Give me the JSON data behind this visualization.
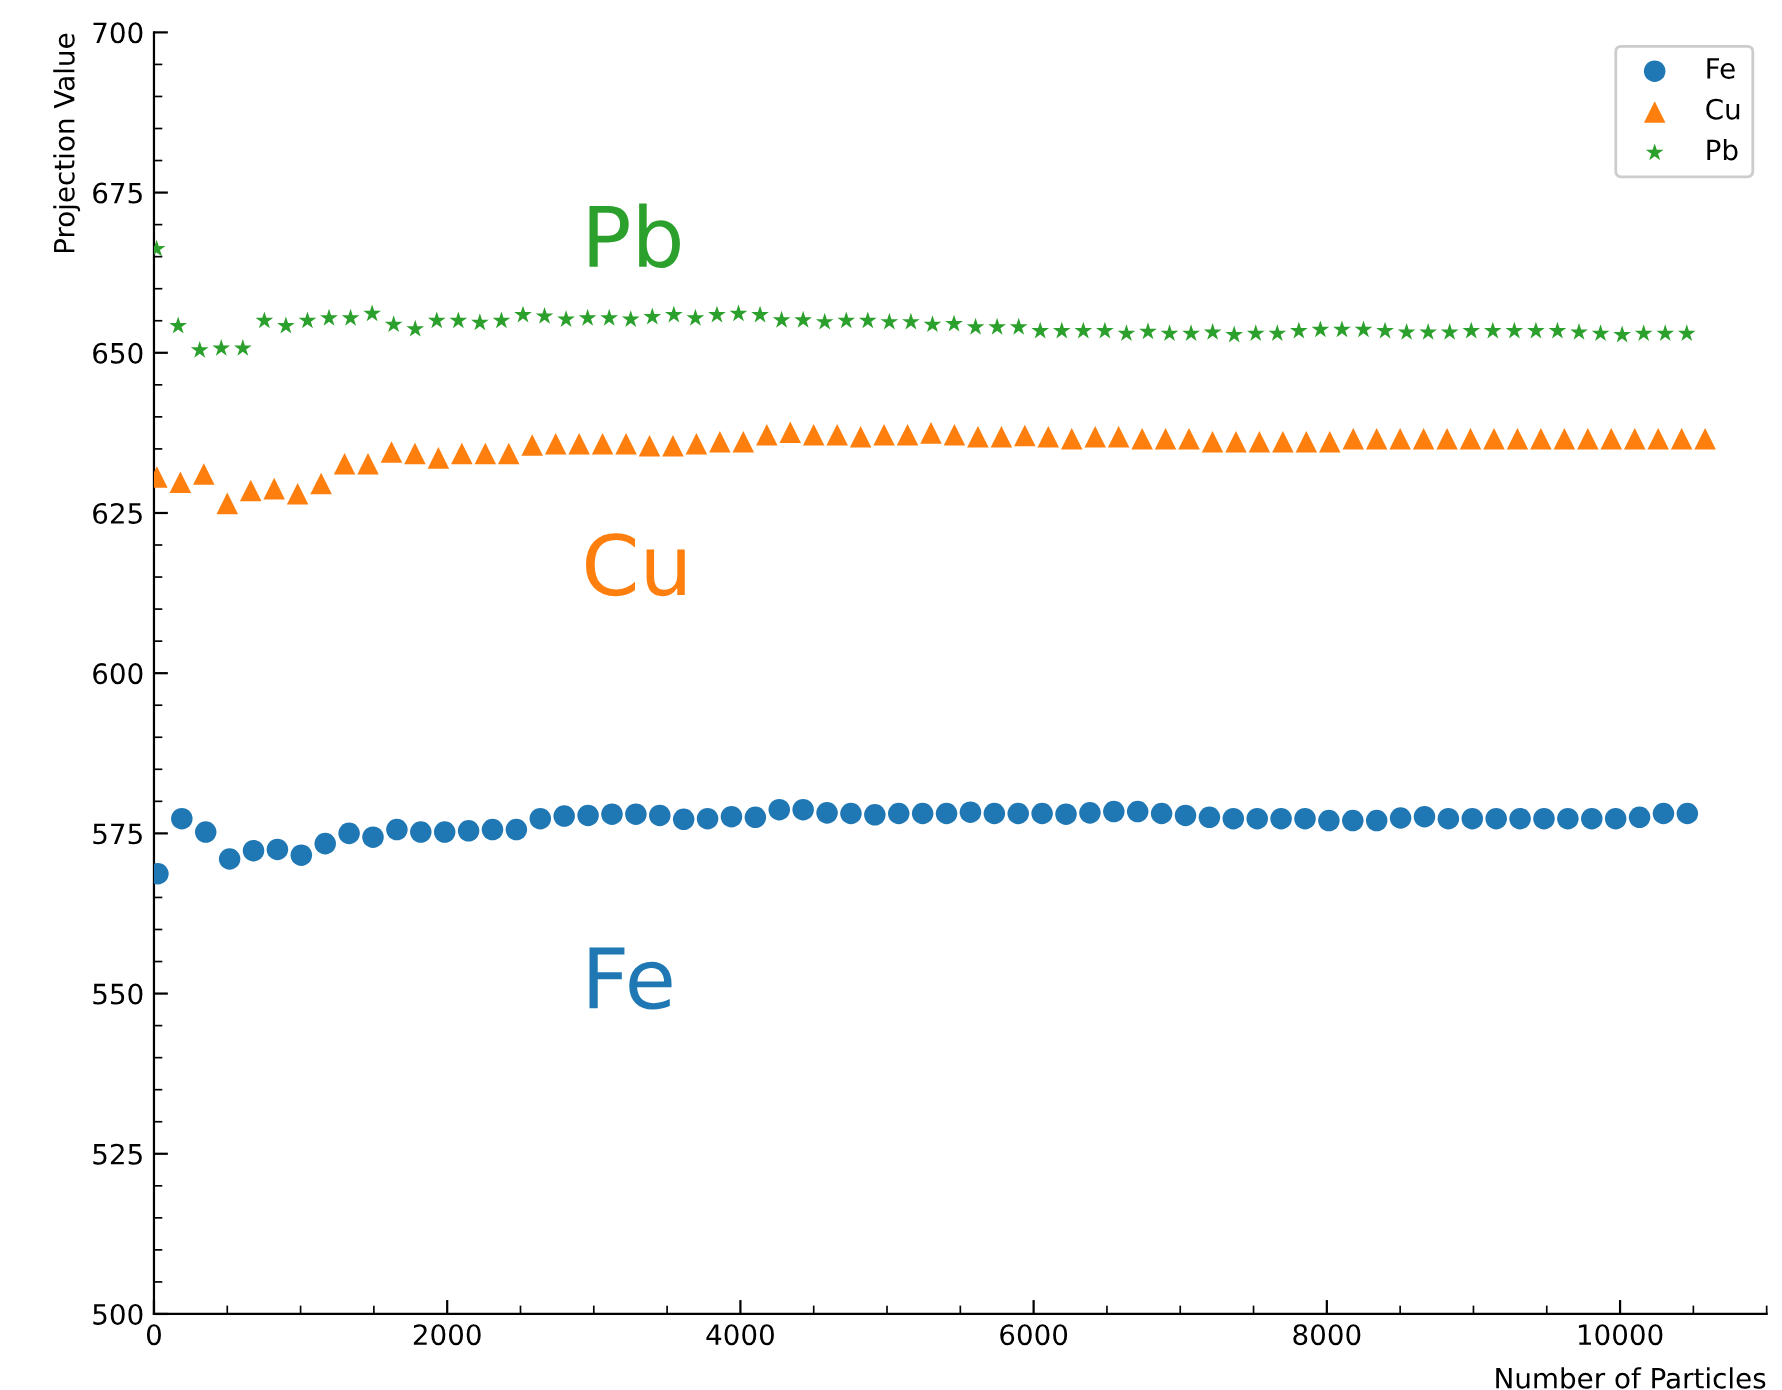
{
  "chart_data": {
    "type": "scatter",
    "xlabel": "Number of Particles",
    "ylabel": "Projection Value",
    "series": [
      {
        "name": "Fe",
        "color": "#1f77b4",
        "marker": "circle",
        "x": [
          27,
          190,
          353,
          516,
          679,
          842,
          1005,
          1168,
          1331,
          1494,
          1657,
          1820,
          1983,
          2146,
          2309,
          2472,
          2635,
          2798,
          2961,
          3124,
          3287,
          3450,
          3613,
          3776,
          3939,
          4102,
          4265,
          4428,
          4591,
          4754,
          4917,
          5080,
          5243,
          5406,
          5569,
          5732,
          5895,
          6058,
          6221,
          6384,
          6547,
          6710,
          6873,
          7036,
          7199,
          7362,
          7525,
          7688,
          7851,
          8014,
          8177,
          8340,
          8503,
          8666,
          8829,
          8992,
          9155,
          9318,
          9481,
          9644,
          9807,
          9970,
          10133,
          10296,
          10459
        ],
        "values": [
          568.7,
          577.3,
          575.2,
          571.0,
          572.3,
          572.5,
          571.6,
          573.4,
          575.0,
          574.4,
          575.6,
          575.2,
          575.2,
          575.4,
          575.6,
          575.6,
          577.3,
          577.7,
          577.8,
          578.0,
          578.0,
          577.8,
          577.2,
          577.3,
          577.6,
          577.5,
          578.7,
          578.7,
          578.2,
          578.1,
          577.9,
          578.1,
          578.1,
          578.1,
          578.3,
          578.1,
          578.1,
          578.1,
          578.0,
          578.2,
          578.4,
          578.4,
          578.1,
          577.8,
          577.5,
          577.3,
          577.3,
          577.3,
          577.3,
          577.0,
          577.0,
          577.0,
          577.4,
          577.6,
          577.3,
          577.3,
          577.3,
          577.3,
          577.3,
          577.3,
          577.3,
          577.3,
          577.5,
          578.1,
          578.1
        ]
      },
      {
        "name": "Cu",
        "color": "#ff7f0e",
        "marker": "triangle",
        "x": [
          20,
          180,
          340,
          500,
          660,
          820,
          980,
          1140,
          1300,
          1460,
          1620,
          1780,
          1940,
          2100,
          2260,
          2420,
          2580,
          2740,
          2900,
          3060,
          3220,
          3380,
          3540,
          3700,
          3860,
          4020,
          4180,
          4340,
          4500,
          4660,
          4820,
          4980,
          5140,
          5300,
          5460,
          5620,
          5780,
          5940,
          6100,
          6260,
          6420,
          6580,
          6740,
          6900,
          7060,
          7220,
          7380,
          7540,
          7700,
          7860,
          8020,
          8180,
          8340,
          8500,
          8660,
          8820,
          8980,
          9140,
          9300,
          9460,
          9620,
          9780,
          9940,
          10100,
          10260,
          10420,
          10580
        ],
        "values": [
          630.6,
          629.8,
          631.1,
          626.5,
          628.5,
          628.8,
          628.0,
          629.6,
          632.7,
          632.7,
          634.5,
          634.3,
          633.6,
          634.3,
          634.3,
          634.3,
          635.6,
          635.8,
          635.8,
          635.8,
          635.8,
          635.5,
          635.5,
          635.8,
          636.1,
          636.1,
          637.2,
          637.6,
          637.2,
          637.2,
          636.9,
          637.2,
          637.2,
          637.5,
          637.2,
          636.9,
          636.9,
          637.1,
          636.9,
          636.6,
          636.9,
          636.9,
          636.6,
          636.6,
          636.6,
          636.1,
          636.1,
          636.1,
          636.1,
          636.1,
          636.1,
          636.6,
          636.6,
          636.6,
          636.6,
          636.6,
          636.6,
          636.6,
          636.6,
          636.6,
          636.6,
          636.6,
          636.6,
          636.6,
          636.6,
          636.6,
          636.6
        ]
      },
      {
        "name": "Pb",
        "color": "#2ca02c",
        "marker": "star",
        "x": [
          18,
          165,
          312,
          459,
          606,
          753,
          900,
          1047,
          1194,
          1341,
          1488,
          1635,
          1782,
          1929,
          2076,
          2223,
          2370,
          2517,
          2664,
          2811,
          2958,
          3105,
          3252,
          3399,
          3546,
          3693,
          3840,
          3987,
          4134,
          4281,
          4428,
          4575,
          4722,
          4869,
          5016,
          5163,
          5310,
          5457,
          5604,
          5751,
          5898,
          6045,
          6192,
          6339,
          6486,
          6633,
          6780,
          6927,
          7074,
          7221,
          7368,
          7515,
          7662,
          7809,
          7956,
          8103,
          8250,
          8397,
          8544,
          8691,
          8838,
          8985,
          9132,
          9279,
          9426,
          9573,
          9720,
          9867,
          10014,
          10161,
          10308,
          10455
        ],
        "values": [
          666.2,
          654.2,
          650.4,
          650.7,
          650.7,
          655.0,
          654.2,
          655.0,
          655.4,
          655.4,
          656.1,
          654.4,
          653.7,
          655.0,
          655.0,
          654.7,
          655.0,
          655.9,
          655.7,
          655.2,
          655.4,
          655.4,
          655.2,
          655.6,
          655.9,
          655.4,
          655.9,
          656.1,
          655.9,
          655.1,
          655.1,
          654.8,
          655.0,
          655.0,
          654.8,
          654.8,
          654.4,
          654.5,
          654.0,
          654.0,
          654.0,
          653.4,
          653.4,
          653.4,
          653.4,
          653.0,
          653.3,
          653.0,
          653.0,
          653.2,
          652.8,
          653.0,
          653.0,
          653.4,
          653.6,
          653.6,
          653.6,
          653.4,
          653.2,
          653.2,
          653.2,
          653.4,
          653.4,
          653.4,
          653.4,
          653.4,
          653.2,
          653.0,
          652.8,
          653.0,
          653.0,
          653.0
        ]
      }
    ],
    "annotations": [
      "Fe",
      "Cu",
      "Pb"
    ],
    "xlim": [
      0,
      11000
    ],
    "ylim": [
      500,
      700
    ],
    "xticks": [
      0,
      2000,
      4000,
      6000,
      8000,
      10000
    ],
    "yticks": [
      500,
      525,
      550,
      575,
      600,
      625,
      650,
      675,
      700
    ],
    "grid": false,
    "legend": "top right"
  }
}
